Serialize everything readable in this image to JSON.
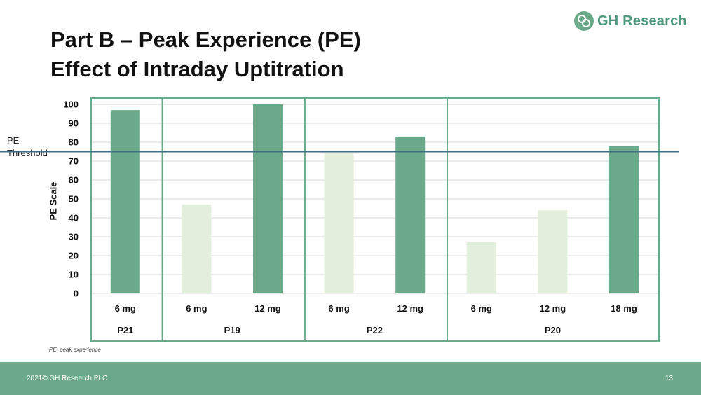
{
  "slide": {
    "title_line1": "Part B – Peak Experience (PE)",
    "title_line2": "Effect of Intraday Uptitration",
    "logo_text": "GH Research",
    "threshold_label_line1": "PE",
    "threshold_label_line2": "Threshold",
    "footnote": "PE, peak experience",
    "footer_left": "2021© GH Research PLC",
    "page_number": "13"
  },
  "colors": {
    "bar_dark": "#6aaa8a",
    "bar_light": "#e2efda",
    "threshold_line": "#3f6f86",
    "group_border": "#6aaa8a",
    "grid": "#d9d9d9",
    "footer": "#6aaa8a"
  },
  "chart_data": {
    "type": "bar",
    "ylabel": "PE Scale",
    "ylim": [
      0,
      100
    ],
    "yticks": [
      0,
      10,
      20,
      30,
      40,
      50,
      60,
      70,
      80,
      90,
      100
    ],
    "threshold": 75,
    "groups": [
      {
        "name": "P21",
        "bars": [
          {
            "dose": "6 mg",
            "value": 97,
            "shade": "dark"
          }
        ]
      },
      {
        "name": "P19",
        "bars": [
          {
            "dose": "6 mg",
            "value": 47,
            "shade": "light"
          },
          {
            "dose": "12 mg",
            "value": 100,
            "shade": "dark"
          }
        ]
      },
      {
        "name": "P22",
        "bars": [
          {
            "dose": "6 mg",
            "value": 74,
            "shade": "light"
          },
          {
            "dose": "12 mg",
            "value": 83,
            "shade": "dark"
          }
        ]
      },
      {
        "name": "P20",
        "bars": [
          {
            "dose": "6 mg",
            "value": 27,
            "shade": "light"
          },
          {
            "dose": "12 mg",
            "value": 44,
            "shade": "light"
          },
          {
            "dose": "18 mg",
            "value": 78,
            "shade": "dark"
          }
        ]
      }
    ],
    "grid": true
  }
}
